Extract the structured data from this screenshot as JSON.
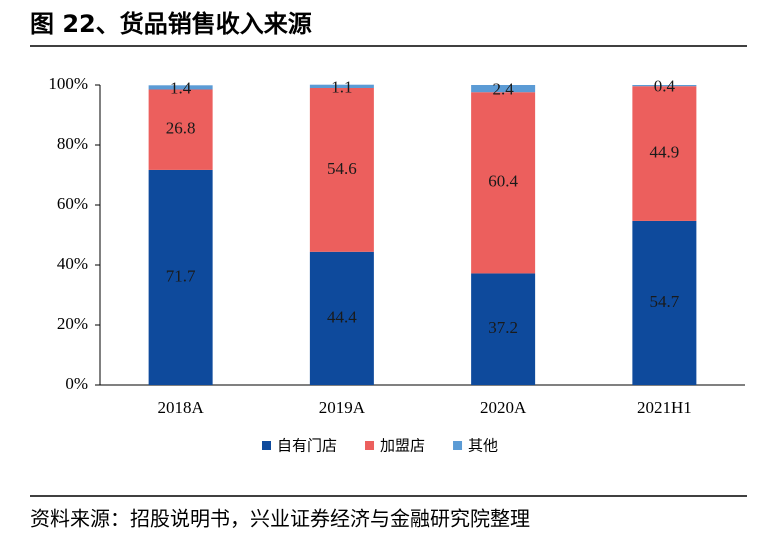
{
  "chart_data": {
    "type": "stacked_bar",
    "title": "图 22、货品销售收入来源",
    "source": "资料来源：招股说明书，兴业证券经济与金融研究院整理",
    "categories": [
      "2018A",
      "2019A",
      "2020A",
      "2021H1"
    ],
    "series": [
      {
        "name": "自有门店",
        "color": "#0e4a9c",
        "values": [
          71.7,
          44.4,
          37.2,
          54.7
        ]
      },
      {
        "name": "加盟店",
        "color": "#ec5f5d",
        "values": [
          26.8,
          54.6,
          60.4,
          44.9
        ]
      },
      {
        "name": "其他",
        "color": "#5b9bd5",
        "values": [
          1.4,
          1.1,
          2.4,
          0.4
        ]
      }
    ],
    "ylim": [
      0,
      100
    ],
    "yticks": [
      {
        "value": 0,
        "label": "0%"
      },
      {
        "value": 20,
        "label": "20%"
      },
      {
        "value": 40,
        "label": "40%"
      },
      {
        "value": 60,
        "label": "60%"
      },
      {
        "value": 80,
        "label": "80%"
      },
      {
        "value": 100,
        "label": "100%"
      }
    ],
    "grid": false,
    "legend": "bottom"
  }
}
